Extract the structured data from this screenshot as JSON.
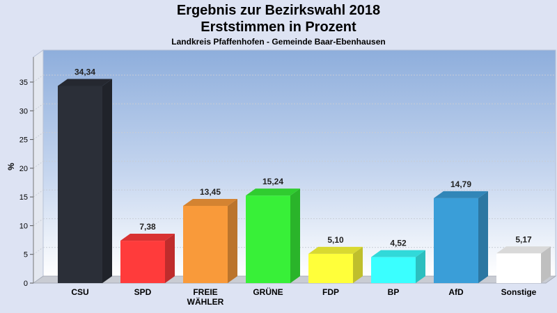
{
  "chart_data": {
    "type": "bar",
    "title": "Ergebnis zur Bezirkswahl 2018",
    "subtitle": "Erststimmen in Prozent",
    "subsubtitle": "Landkreis Pfaffenhofen - Gemeinde Baar-Ebenhausen",
    "ylabel": "%",
    "ylim": [
      0,
      35
    ],
    "yticks": [
      0,
      5,
      10,
      15,
      20,
      25,
      30,
      35
    ],
    "grid": true,
    "categories": [
      "CSU",
      "SPD",
      "FREIE WÄHLER",
      "GRÜNE",
      "FDP",
      "BP",
      "AfD",
      "Sonstige"
    ],
    "category_lines": [
      [
        "CSU"
      ],
      [
        "SPD"
      ],
      [
        "FREIE",
        "WÄHLER"
      ],
      [
        "GRÜNE"
      ],
      [
        "FDP"
      ],
      [
        "BP"
      ],
      [
        "AfD"
      ],
      [
        "Sonstige"
      ]
    ],
    "values": [
      34.34,
      7.38,
      13.45,
      15.24,
      5.1,
      4.52,
      14.79,
      5.17
    ],
    "value_labels": [
      "34,34",
      "7,38",
      "13,45",
      "15,24",
      "5,10",
      "4,52",
      "14,79",
      "5,17"
    ],
    "colors": [
      "#2b2f38",
      "#ff3b3b",
      "#f99a3a",
      "#38f038",
      "#ffff3a",
      "#3affff",
      "#3a9ed8",
      "#ffffff"
    ]
  }
}
